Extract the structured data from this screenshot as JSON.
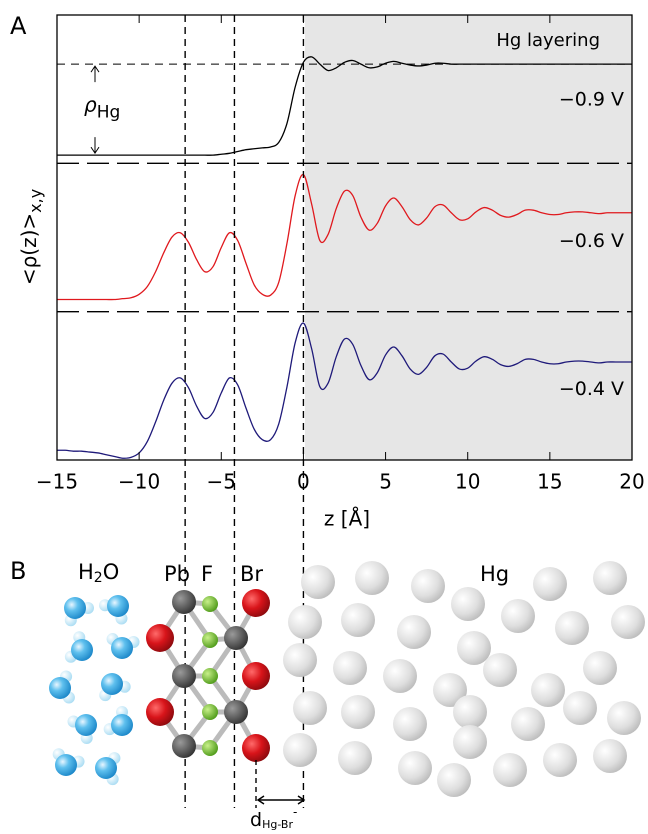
{
  "chart_data": {
    "type": "line",
    "panel_label": "A",
    "annotation": "Hg layering",
    "rho_label": "ρ",
    "rho_sub": "Hg",
    "ylabel": "<ρ(z)>",
    "ylabel_sub": "x,y",
    "xlabel": "z [Å]",
    "xlim": [
      -15,
      20
    ],
    "xticks": [
      {
        "value": -15,
        "label": "−15"
      },
      {
        "value": -10,
        "label": "−10"
      },
      {
        "value": -5,
        "label": "−5"
      },
      0,
      5,
      10,
      15,
      20
    ],
    "reference_lines": [
      -7.2,
      -4.2,
      0
    ],
    "x": [
      -15,
      -14.5,
      -14,
      -13.5,
      -13,
      -12.5,
      -12,
      -11.5,
      -11,
      -10.5,
      -10,
      -9.5,
      -9,
      -8.5,
      -8,
      -7.5,
      -7,
      -6.5,
      -6,
      -5.5,
      -5,
      -4.5,
      -4,
      -3.5,
      -3,
      -2.5,
      -2,
      -1.5,
      -1,
      -0.5,
      0,
      0.5,
      1,
      1.5,
      2,
      2.5,
      3,
      3.5,
      4,
      4.5,
      5,
      5.5,
      6,
      6.5,
      7,
      7.5,
      8,
      8.5,
      9,
      9.5,
      10,
      10.5,
      11,
      11.5,
      12,
      12.5,
      13,
      13.5,
      14,
      14.5,
      15,
      15.5,
      16,
      16.5,
      17,
      17.5,
      18,
      18.5,
      19,
      19.5,
      20
    ],
    "series": [
      {
        "name": "−0.9  V",
        "color": "#000000",
        "ylim": [
          -0.09,
          1.54
        ],
        "values": [
          0,
          0,
          0,
          0,
          0,
          0,
          0,
          0,
          0,
          0,
          0,
          0,
          0,
          0,
          0,
          0,
          0,
          0,
          0,
          0,
          0.01,
          0.02,
          0.04,
          0.06,
          0.07,
          0.08,
          0.09,
          0.14,
          0.35,
          0.75,
          1.02,
          1.08,
          1.0,
          0.93,
          0.96,
          1.02,
          1.04,
          1.0,
          0.96,
          0.97,
          1.01,
          1.03,
          1.01,
          0.99,
          0.98,
          0.99,
          1.01,
          1.01,
          1.0,
          1.0,
          1.0,
          1.0,
          1.0,
          1.0,
          1.0,
          1.0,
          1.0,
          1.0,
          1.0,
          1.0,
          1.0,
          1.0,
          1.0,
          1.0,
          1.0,
          1.0,
          1.0,
          1.0,
          1.0,
          1.0,
          1.0
        ]
      },
      {
        "name": "−0.6  V",
        "color": "#e0191e",
        "ylim": [
          -0.14,
          1.57
        ],
        "values": [
          0,
          0,
          0,
          0,
          0,
          0,
          0,
          0,
          0.01,
          0.02,
          0.06,
          0.15,
          0.32,
          0.54,
          0.72,
          0.77,
          0.66,
          0.46,
          0.32,
          0.38,
          0.6,
          0.77,
          0.68,
          0.42,
          0.17,
          0.06,
          0.05,
          0.2,
          0.65,
          1.2,
          1.44,
          1.1,
          0.68,
          0.75,
          1.05,
          1.25,
          1.2,
          0.95,
          0.8,
          0.88,
          1.08,
          1.17,
          1.07,
          0.92,
          0.86,
          0.94,
          1.07,
          1.09,
          1.0,
          0.92,
          0.93,
          1.01,
          1.06,
          1.03,
          0.97,
          0.95,
          0.98,
          1.03,
          1.03,
          1.0,
          0.98,
          0.98,
          1.0,
          1.01,
          1.01,
          1.0,
          0.99,
          1.0,
          1.0,
          1.0,
          1.0
        ]
      },
      {
        "name": "−0.4  V",
        "color": "#1f1a7a",
        "ylim": [
          -0.11,
          1.57
        ],
        "values": [
          0,
          0,
          -0.01,
          -0.01,
          -0.02,
          -0.03,
          -0.05,
          -0.07,
          -0.09,
          -0.08,
          -0.03,
          0.1,
          0.32,
          0.57,
          0.76,
          0.82,
          0.71,
          0.5,
          0.36,
          0.43,
          0.65,
          0.82,
          0.74,
          0.48,
          0.24,
          0.12,
          0.12,
          0.3,
          0.72,
          1.22,
          1.44,
          1.15,
          0.72,
          0.76,
          1.06,
          1.26,
          1.2,
          0.96,
          0.8,
          0.88,
          1.08,
          1.17,
          1.07,
          0.92,
          0.86,
          0.94,
          1.07,
          1.09,
          1.0,
          0.92,
          0.93,
          1.01,
          1.06,
          1.03,
          0.97,
          0.95,
          0.98,
          1.03,
          1.03,
          1.0,
          0.98,
          0.98,
          1.0,
          1.01,
          1.01,
          1.0,
          0.99,
          1.0,
          1.0,
          1.0,
          1.0
        ]
      }
    ]
  },
  "illustration": {
    "panel_label": "B",
    "water": {
      "text": "H",
      "sub": "2",
      "tail": "O"
    },
    "pb": "Pb",
    "f": "F",
    "br": "Br",
    "hg": "Hg",
    "distance": {
      "text": "d",
      "sub": "Hg-Br",
      "sup": "-"
    }
  }
}
